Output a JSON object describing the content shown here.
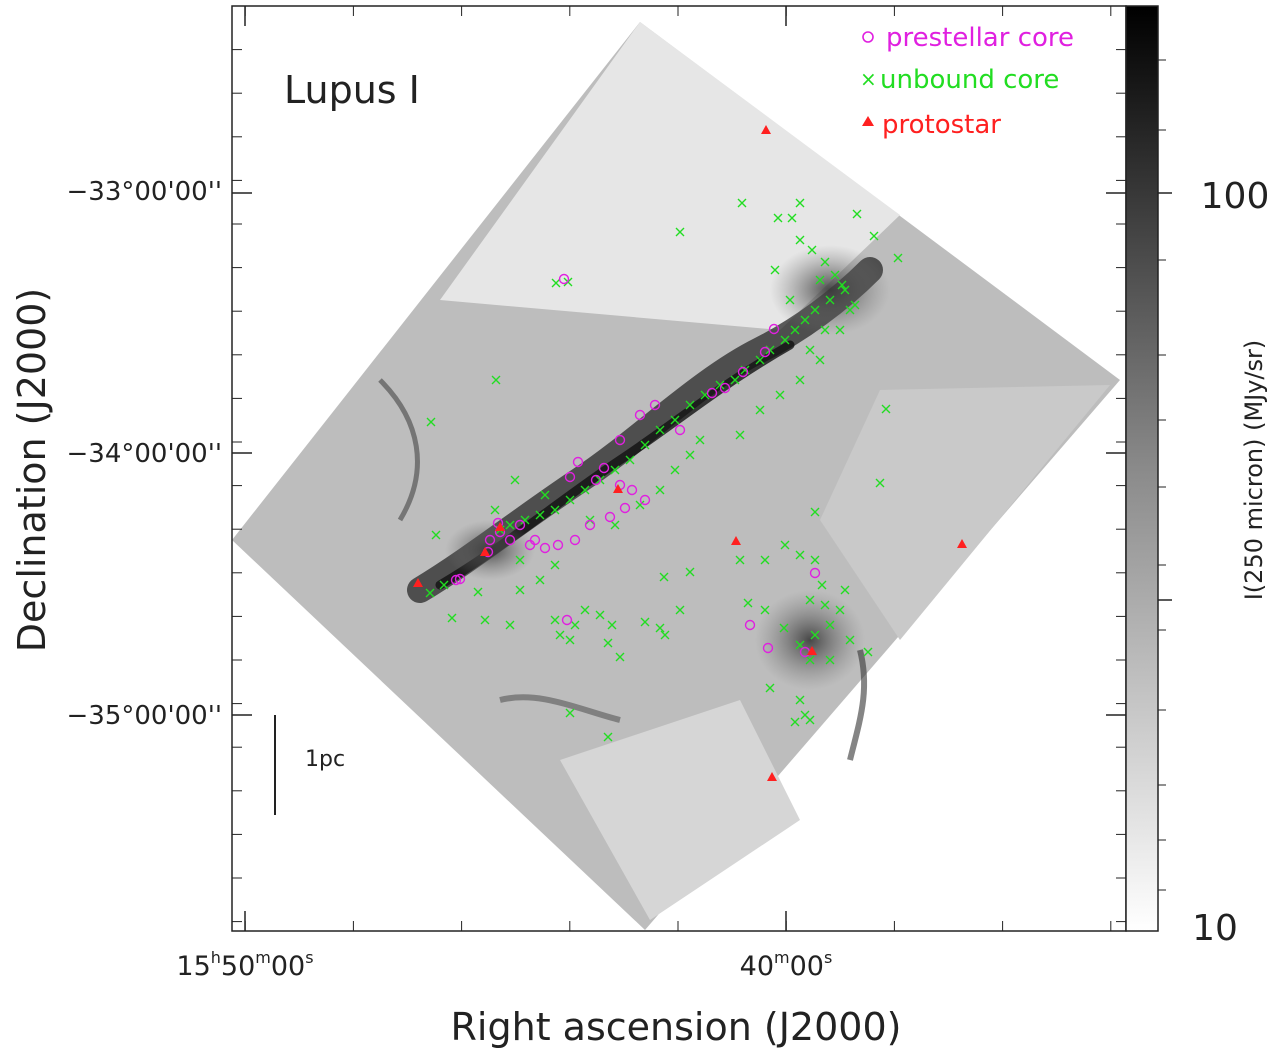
{
  "figure": {
    "field_label": "Lupus I",
    "scalebar_label": "1pc",
    "xaxis_title": "Right ascension (J2000)",
    "yaxis_title": "Declination (J2000)",
    "colorbar_title": "I(250 micron) (MJy/sr)",
    "colorbar_ticks": [
      "100",
      "10"
    ],
    "colorbar_scale": "log",
    "colormap": "grayscale-inverted",
    "ra_tick_hours": {
      "main": "15",
      "sup": "h"
    },
    "ra_tick_minutes": {
      "main": "50",
      "sup": "m"
    },
    "ra_tick_seconds": {
      "main": "00",
      "sup": "s"
    },
    "ra_tick2_minutes": {
      "main": "40",
      "sup": "m"
    },
    "ra_tick2_seconds": {
      "main": "00",
      "sup": "s"
    },
    "dec_ticks": [
      "−33°00'00''",
      "−34°00'00''",
      "−35°00'00''"
    ]
  },
  "legend": [
    {
      "symbol": "o",
      "label": "prestellar core",
      "color": "#e020e0"
    },
    {
      "symbol": "×",
      "label": "unbound core",
      "color": "#22dd22"
    },
    {
      "symbol": "▲",
      "label": "protostar",
      "color": "#ff2020"
    }
  ],
  "colors": {
    "prestellar": "#e020e0",
    "unbound": "#22dd22",
    "protostar": "#ff2020",
    "axis": "#222222"
  }
}
